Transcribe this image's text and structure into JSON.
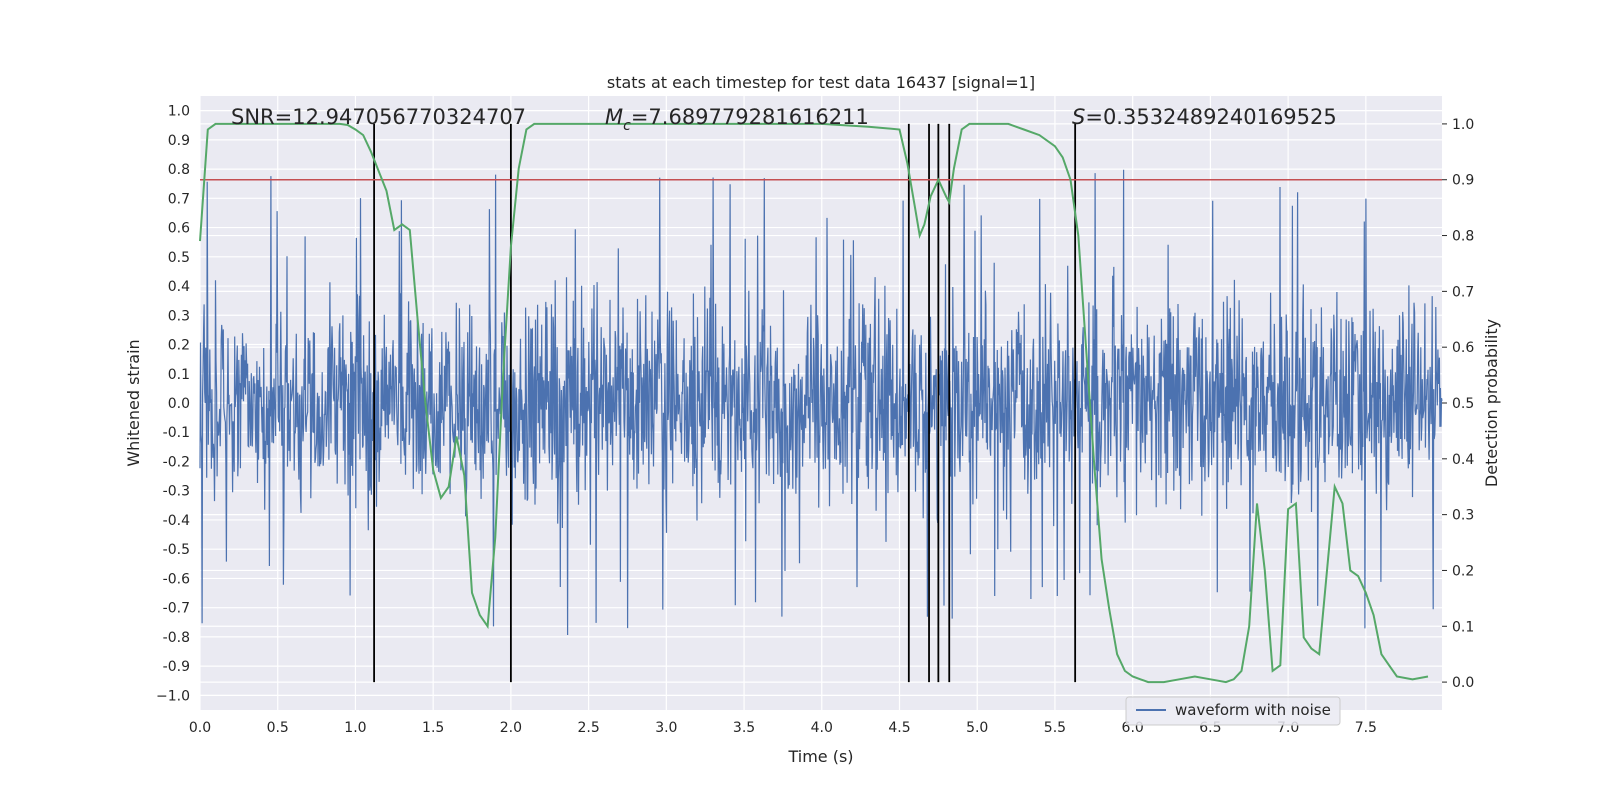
{
  "chart_data": {
    "type": "line",
    "title": "stats at each timestep for test data 16437 [signal=1]",
    "xlabel": "Time (s)",
    "ylabel_left": "Whitened strain",
    "ylabel_right": "Detection probability",
    "xlim": [
      0.0,
      7.99
    ],
    "ylim_left": [
      -1.05,
      1.05
    ],
    "ylim_right": [
      -0.05,
      1.05
    ],
    "x_ticks": [
      "0.0",
      "0.5",
      "1.0",
      "1.5",
      "2.0",
      "2.5",
      "3.0",
      "3.5",
      "4.0",
      "4.5",
      "5.0",
      "5.5",
      "6.0",
      "6.5",
      "7.0",
      "7.5"
    ],
    "y_ticks_left": [
      "1.0",
      "0.9",
      "0.8",
      "0.7",
      "0.6",
      "0.5",
      "0.4",
      "0.3",
      "0.2",
      "0.1",
      "0.0",
      "-0.1",
      "-0.2",
      "-0.3",
      "-0.4",
      "-0.5",
      "-0.6",
      "-0.7",
      "-0.8",
      "-0.9",
      "−1.0"
    ],
    "y_ticks_right": [
      "1.0",
      "0.9",
      "0.8",
      "0.7",
      "0.6",
      "0.5",
      "0.4",
      "0.3",
      "0.2",
      "0.1",
      "0.0"
    ],
    "grid": true,
    "legend_position": "bottom-right",
    "annotations": {
      "snr": "SNR=12.947056770324707",
      "mc_symbol": "M",
      "mc_subscript": "c",
      "mc_value": "=7.689779281616211",
      "s_symbol": "S",
      "s_value": "=0.3532489240169525"
    },
    "threshold": {
      "value_right_axis": 0.9,
      "color": "#c44e52"
    },
    "vertical_lines_x": [
      1.12,
      2.0,
      4.56,
      4.69,
      4.75,
      4.82,
      5.63
    ],
    "series": [
      {
        "name": "waveform with noise",
        "axis": "left",
        "color": "#4c72b0",
        "style": "dense noise, envelope approx ±0.45 with spikes up to about 0.9 and down to about -0.95"
      },
      {
        "axis": "right",
        "color": "#55a868",
        "x": [
          0.0,
          0.05,
          0.1,
          0.2,
          0.4,
          0.6,
          0.8,
          0.9,
          0.95,
          1.0,
          1.05,
          1.1,
          1.2,
          1.25,
          1.3,
          1.35,
          1.4,
          1.45,
          1.5,
          1.55,
          1.6,
          1.65,
          1.7,
          1.75,
          1.8,
          1.85,
          1.9,
          1.95,
          2.0,
          2.05,
          2.1,
          2.15,
          2.2,
          2.4,
          2.6,
          3.0,
          3.5,
          4.0,
          4.3,
          4.5,
          4.55,
          4.6,
          4.63,
          4.66,
          4.7,
          4.75,
          4.8,
          4.82,
          4.85,
          4.9,
          4.95,
          5.0,
          5.1,
          5.2,
          5.3,
          5.4,
          5.5,
          5.55,
          5.6,
          5.65,
          5.7,
          5.75,
          5.8,
          5.85,
          5.9,
          5.95,
          6.0,
          6.05,
          6.1,
          6.2,
          6.3,
          6.4,
          6.5,
          6.6,
          6.65,
          6.7,
          6.75,
          6.8,
          6.85,
          6.9,
          6.95,
          7.0,
          7.05,
          7.1,
          7.15,
          7.2,
          7.25,
          7.3,
          7.35,
          7.4,
          7.45,
          7.5,
          7.55,
          7.6,
          7.65,
          7.7,
          7.8,
          7.9
        ],
        "values": [
          0.79,
          0.99,
          1.0,
          1.0,
          1.0,
          1.0,
          1.0,
          1.0,
          0.998,
          0.99,
          0.98,
          0.95,
          0.88,
          0.81,
          0.82,
          0.81,
          0.65,
          0.5,
          0.38,
          0.33,
          0.35,
          0.44,
          0.37,
          0.16,
          0.12,
          0.1,
          0.26,
          0.55,
          0.78,
          0.92,
          0.99,
          1.0,
          1.0,
          1.0,
          1.0,
          1.0,
          1.0,
          1.0,
          0.995,
          0.99,
          0.93,
          0.85,
          0.8,
          0.82,
          0.87,
          0.9,
          0.87,
          0.86,
          0.92,
          0.99,
          1.0,
          1.0,
          1.0,
          1.0,
          0.99,
          0.98,
          0.96,
          0.94,
          0.9,
          0.8,
          0.6,
          0.4,
          0.22,
          0.13,
          0.05,
          0.02,
          0.01,
          0.005,
          0.0,
          0.0,
          0.005,
          0.01,
          0.005,
          0.0,
          0.005,
          0.02,
          0.1,
          0.32,
          0.2,
          0.02,
          0.03,
          0.31,
          0.32,
          0.08,
          0.06,
          0.05,
          0.2,
          0.35,
          0.32,
          0.2,
          0.19,
          0.16,
          0.12,
          0.05,
          0.03,
          0.01,
          0.005,
          0.01
        ]
      }
    ]
  }
}
